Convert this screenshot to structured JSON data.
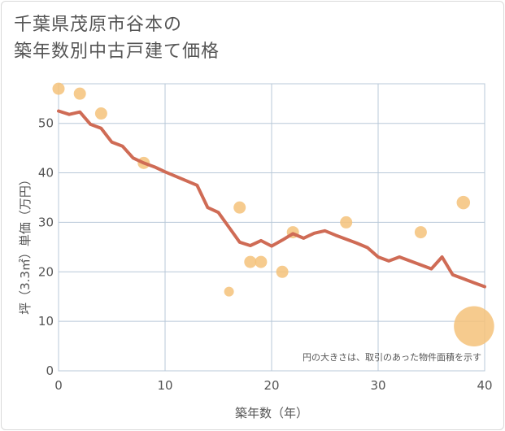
{
  "chart_data": {
    "type": "scatter",
    "title_line1": "千葉県茂原市谷本の",
    "title_line2": "築年数別中古戸建て価格",
    "xlabel": "築年数（年）",
    "ylabel": "坪（3.3㎡）単価（万円）",
    "xlim": [
      0,
      40
    ],
    "ylim": [
      0,
      58
    ],
    "xticks": [
      0,
      10,
      20,
      30,
      40
    ],
    "yticks": [
      0,
      10,
      20,
      30,
      40,
      50
    ],
    "note": "円の大きさは、取引のあった物件面積を示す",
    "colors": {
      "points": "#f5c27a",
      "line": "#cf6b55",
      "grid": "#b8c8d8"
    },
    "points": [
      {
        "x": 0,
        "y": 57,
        "size": 1
      },
      {
        "x": 2,
        "y": 56,
        "size": 1
      },
      {
        "x": 4,
        "y": 52,
        "size": 1
      },
      {
        "x": 8,
        "y": 42,
        "size": 1
      },
      {
        "x": 16,
        "y": 16,
        "size": 0.8
      },
      {
        "x": 17,
        "y": 33,
        "size": 1
      },
      {
        "x": 18,
        "y": 22,
        "size": 1
      },
      {
        "x": 19,
        "y": 22,
        "size": 1
      },
      {
        "x": 21,
        "y": 20,
        "size": 1
      },
      {
        "x": 22,
        "y": 28,
        "size": 1
      },
      {
        "x": 27,
        "y": 30,
        "size": 1
      },
      {
        "x": 34,
        "y": 28,
        "size": 1
      },
      {
        "x": 38,
        "y": 34,
        "size": 1.1
      },
      {
        "x": 39,
        "y": 9,
        "size": 3.3
      }
    ],
    "trend": {
      "x": [
        0,
        1,
        2,
        3,
        4,
        5,
        6,
        7,
        8,
        9,
        10,
        11,
        12,
        13,
        14,
        15,
        16,
        17,
        18,
        19,
        20,
        21,
        22,
        23,
        24,
        25,
        26,
        27,
        28,
        29,
        30,
        31,
        32,
        33,
        34,
        35,
        36,
        37,
        38,
        39,
        40
      ],
      "y": [
        52.5,
        51.8,
        52.3,
        49.8,
        49,
        46.2,
        45.4,
        43,
        42,
        41.2,
        40.2,
        39.3,
        38.4,
        37.5,
        33,
        32,
        29,
        26,
        25.3,
        26.3,
        25.2,
        26.4,
        27.7,
        26.8,
        27.8,
        28.3,
        27.4,
        26.6,
        25.8,
        24.9,
        23,
        22.2,
        23,
        22.2,
        21.4,
        20.6,
        23,
        19.4,
        18.6,
        17.8,
        17
      ]
    }
  }
}
